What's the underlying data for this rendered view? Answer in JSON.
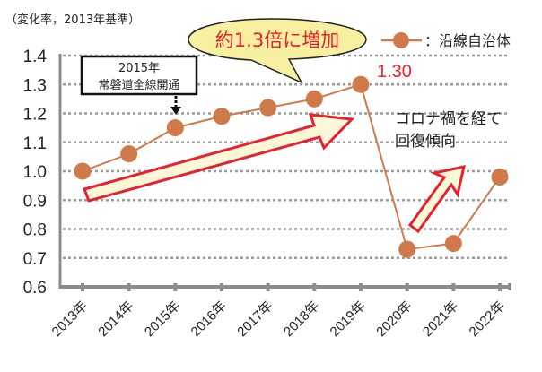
{
  "chart_data": {
    "type": "line",
    "title": "",
    "unit_label": "（変化率，2013年基準）",
    "xlabel": "",
    "ylabel": "変化率",
    "categories": [
      "2013年",
      "2014年",
      "2015年",
      "2016年",
      "2017年",
      "2018年",
      "2019年",
      "2020年",
      "2021年",
      "2022年"
    ],
    "series": [
      {
        "name": "：沿線自治体",
        "color": "#d07a4c",
        "values": [
          1.0,
          1.06,
          1.15,
          1.19,
          1.22,
          1.25,
          1.3,
          0.73,
          0.75,
          0.98
        ]
      }
    ],
    "ylim": [
      0.6,
      1.4
    ],
    "yticks": [
      "0.6",
      "0.7",
      "0.8",
      "0.9",
      "1.0",
      "1.1",
      "1.2",
      "1.3",
      "1.4"
    ],
    "grid": true,
    "legend_position": "top-right",
    "annotations": {
      "event_box_line1": "2015年",
      "event_box_line2": "常磐道全線開通",
      "callout": "約1.3倍に増加",
      "peak_label": "1.30",
      "recovery_line1": "コロナ禍を経て",
      "recovery_line2": "回復傾向"
    }
  },
  "colors": {
    "line": "#d07a4c",
    "accent_red": "#e8212e",
    "callout_fill": "#f6f0a0",
    "grid": "#9a9a9a",
    "axis": "#8c8c8c"
  }
}
